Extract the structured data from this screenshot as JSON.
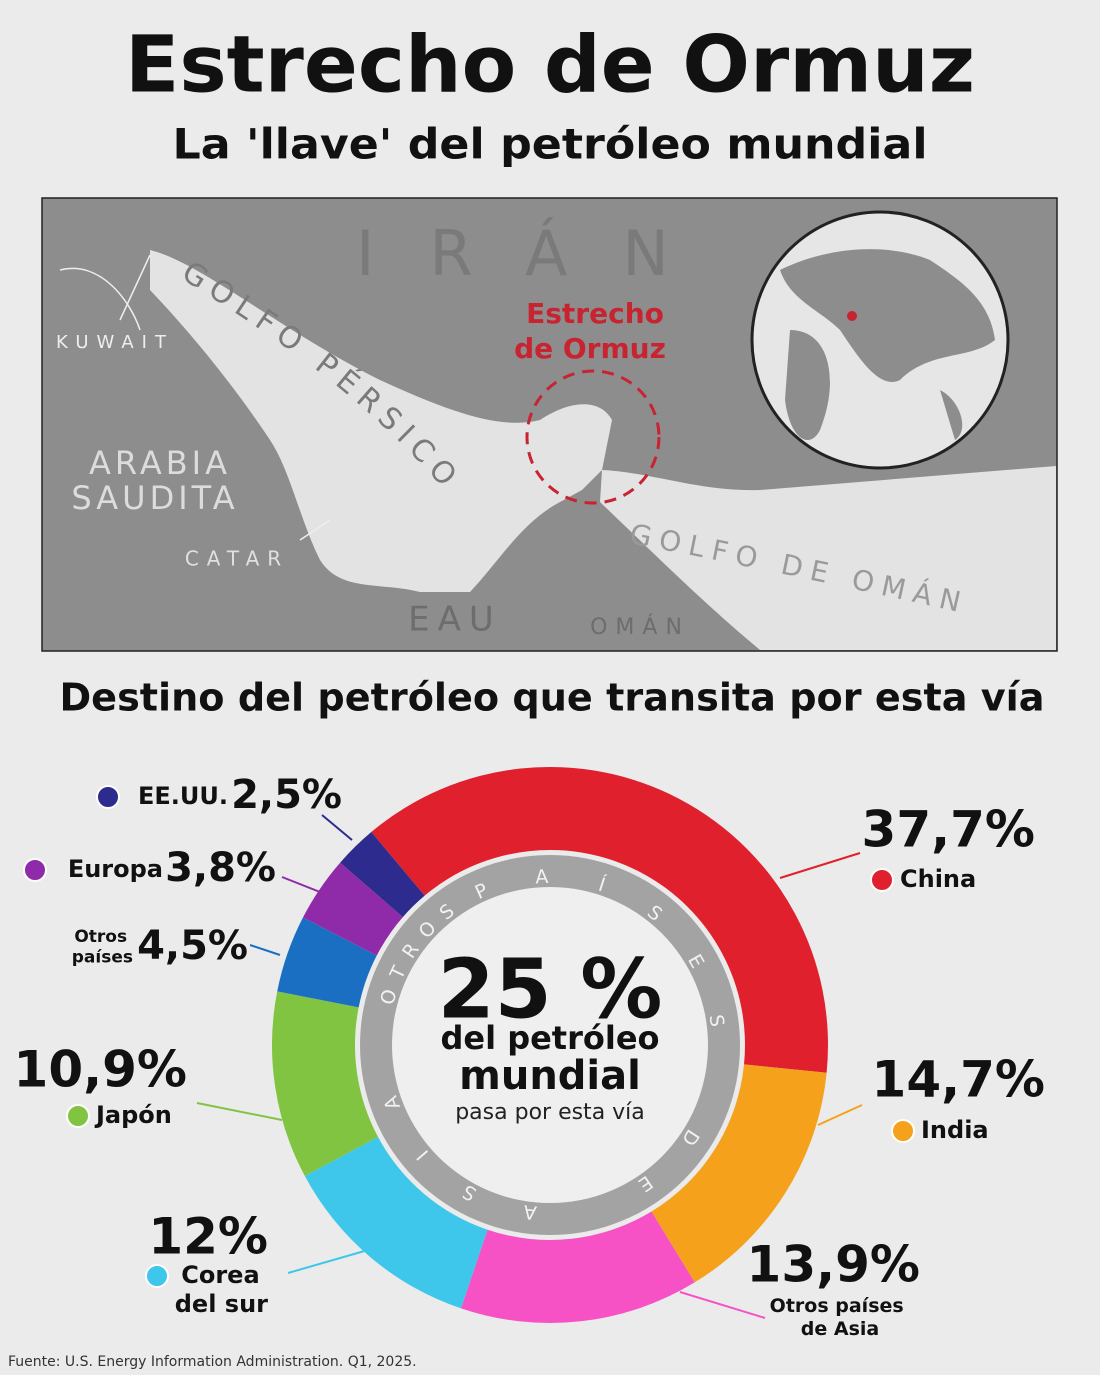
{
  "header": {
    "title": "Estrecho de Ormuz",
    "subtitle": "La 'llave' del petróleo mundial"
  },
  "map": {
    "country_iran": "IRÁN",
    "gulf_persian": "GOLFO PÉRSICO",
    "kuwait": "KUWAIT",
    "saudi_line1": "ARABIA",
    "saudi_line2": "SAUDITA",
    "qatar": "CATAR",
    "uae": "EAU",
    "oman": "OMÁN",
    "gulf_oman": "GOLFO DE OMÁN",
    "strait_line1": "Estrecho",
    "strait_line2": "de Ormuz"
  },
  "section_title": "Destino del petróleo que transita por esta vía",
  "chart_data": {
    "type": "pie",
    "categories": [
      "China",
      "India",
      "Otros países de Asia",
      "Corea del sur",
      "Japón",
      "Otros países",
      "Europa",
      "EE.UU."
    ],
    "values": [
      37.7,
      14.7,
      13.9,
      12,
      10.9,
      4.5,
      3.8,
      2.5
    ],
    "value_labels": [
      "37,7%",
      "14,7%",
      "13,9%",
      "12%",
      "10,9%",
      "4,5%",
      "3,8%",
      "2,5%"
    ],
    "colors": [
      "#e1202d",
      "#f5a11c",
      "#f652c6",
      "#3ec7ea",
      "#80c442",
      "#1b6fc2",
      "#8f2ba8",
      "#2d2c8e"
    ],
    "ring_labels": [
      "OTROS",
      "PAÍSES DE ASIA"
    ],
    "center_lines": [
      "25 %",
      "del petróleo",
      "mundial",
      "pasa por esta vía"
    ]
  },
  "footer": "Fuente: U.S. Energy Information Administration. Q1, 2025."
}
